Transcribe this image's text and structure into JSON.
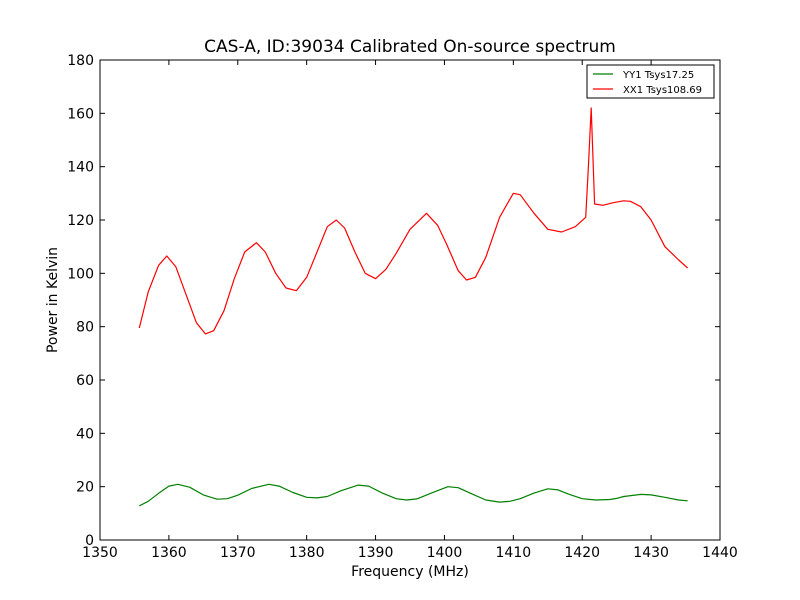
{
  "chart_data": {
    "type": "line",
    "title": "CAS-A, ID:39034 Calibrated On-source spectrum",
    "xlabel": "Frequency (MHz)",
    "ylabel": "Power in Kelvin",
    "xlim": [
      1350,
      1440
    ],
    "ylim": [
      0,
      180
    ],
    "xticks": [
      1350,
      1360,
      1370,
      1380,
      1390,
      1400,
      1410,
      1420,
      1430,
      1440
    ],
    "yticks": [
      0,
      20,
      40,
      60,
      80,
      100,
      120,
      140,
      160,
      180
    ],
    "grid": false,
    "legend_position": "top-right",
    "series": [
      {
        "name": "YY1 Tsys17.25",
        "color": "#008000",
        "x": [
          1355.7,
          1357,
          1358.5,
          1360,
          1361.3,
          1363,
          1365,
          1367,
          1368.5,
          1370,
          1372,
          1374.5,
          1376,
          1378,
          1380,
          1381.5,
          1383,
          1385,
          1387.5,
          1389,
          1391,
          1393,
          1394.5,
          1396,
          1398,
          1400.5,
          1402,
          1404,
          1406,
          1408,
          1409.5,
          1411,
          1413,
          1415,
          1416.5,
          1418,
          1420,
          1422,
          1424,
          1425,
          1426,
          1428.5,
          1430,
          1432,
          1434,
          1435.3
        ],
        "y": [
          12.8,
          14.5,
          17.5,
          20.2,
          20.9,
          19.8,
          16.9,
          15.3,
          15.5,
          16.8,
          19.3,
          20.9,
          20.2,
          17.8,
          16.0,
          15.8,
          16.3,
          18.5,
          20.6,
          20.2,
          17.6,
          15.5,
          15.0,
          15.4,
          17.5,
          20.0,
          19.6,
          17.3,
          15.0,
          14.2,
          14.5,
          15.5,
          17.6,
          19.2,
          18.8,
          17.2,
          15.5,
          15.0,
          15.2,
          15.6,
          16.3,
          17.1,
          16.9,
          16.0,
          15.0,
          14.7
        ]
      },
      {
        "name": "XX1 Tsys108.69",
        "color": "#ff0000",
        "x": [
          1355.7,
          1357,
          1358.5,
          1359.7,
          1361,
          1362.5,
          1364,
          1365.3,
          1366.5,
          1368,
          1369.5,
          1371,
          1372.7,
          1374,
          1375.5,
          1377,
          1378.5,
          1380,
          1381.5,
          1383,
          1384.3,
          1385.5,
          1387,
          1388.5,
          1390,
          1391.5,
          1393,
          1395,
          1397.4,
          1399,
          1400.3,
          1400.8,
          1402,
          1403.2,
          1404.5,
          1406,
          1408,
          1410,
          1411,
          1413,
          1415,
          1417,
          1419,
          1420.5,
          1420.9,
          1421.3,
          1421.8,
          1423,
          1424.5,
          1426,
          1427,
          1428.5,
          1430,
          1432,
          1434,
          1435.3
        ],
        "y": [
          79.5,
          93.0,
          103.0,
          106.5,
          102.5,
          92.0,
          81.5,
          77.3,
          78.5,
          86.0,
          98.0,
          108.0,
          111.5,
          108.0,
          100.0,
          94.5,
          93.5,
          98.5,
          108.0,
          117.5,
          120.0,
          117.0,
          108.0,
          100.0,
          98.0,
          101.5,
          107.5,
          116.5,
          122.5,
          118.0,
          111.0,
          108.0,
          101.0,
          97.5,
          98.5,
          106.0,
          121.0,
          130.0,
          129.5,
          122.5,
          116.5,
          115.5,
          117.5,
          121.0,
          140.0,
          162.0,
          126.0,
          125.5,
          126.5,
          127.2,
          127.0,
          125.0,
          120.0,
          110.0,
          105.0,
          102.0
        ]
      }
    ]
  }
}
